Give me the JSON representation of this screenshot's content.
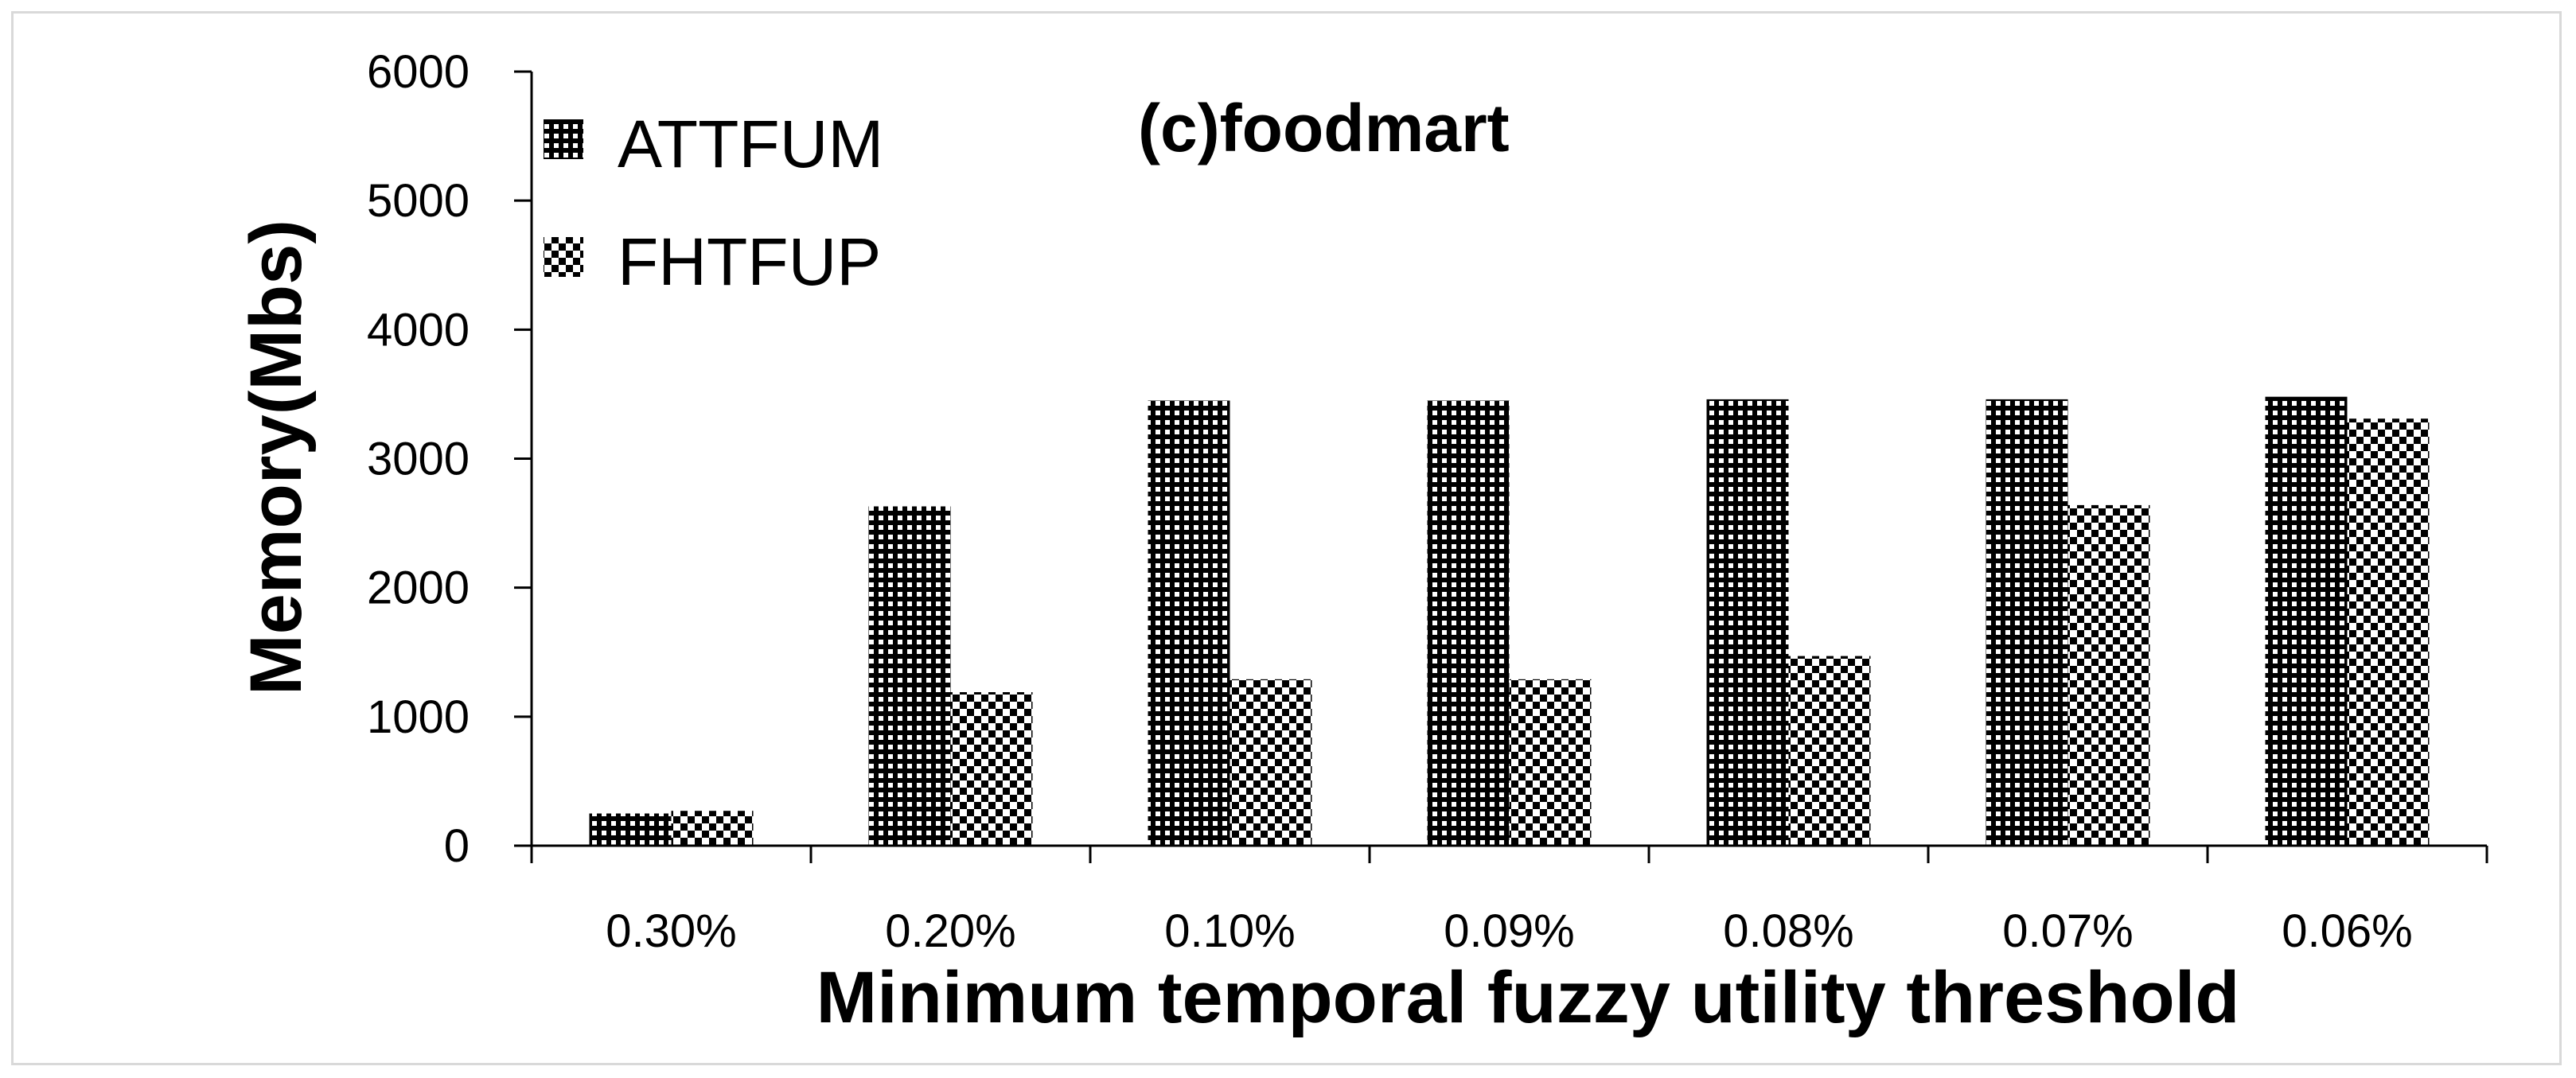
{
  "chart_data": {
    "type": "bar",
    "title": "(c)foodmart",
    "xlabel": "Minimum temporal fuzzy utility threshold",
    "ylabel": "Memory(Mbs)",
    "categories": [
      "0.30%",
      "0.20%",
      "0.10%",
      "0.09%",
      "0.08%",
      "0.07%",
      "0.06%"
    ],
    "series": [
      {
        "name": "ATTFUM",
        "values": [
          250,
          2630,
          3450,
          3450,
          3460,
          3460,
          3480
        ],
        "pattern": "dense-checker"
      },
      {
        "name": "FHTFUP",
        "values": [
          270,
          1190,
          1290,
          1290,
          1470,
          2640,
          3310
        ],
        "pattern": "coarse-checker"
      }
    ],
    "yticks": [
      0,
      1000,
      2000,
      3000,
      4000,
      5000,
      6000
    ],
    "ylim": [
      0,
      6000
    ],
    "grid": false,
    "legend_position": "top-left",
    "colors": {
      "bar_dark": "#000000",
      "bar_light": "#ffffff",
      "axis": "#000000",
      "frame": "#d9d9d9"
    }
  }
}
